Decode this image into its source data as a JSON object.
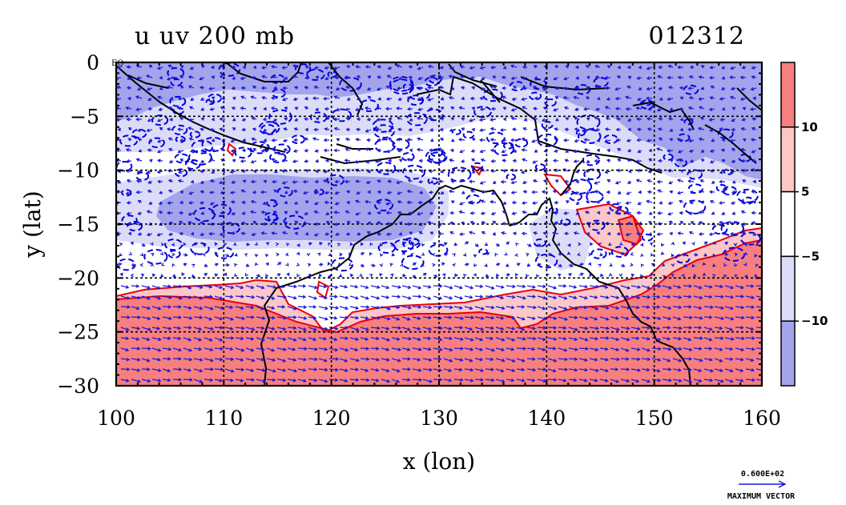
{
  "chart_data": {
    "type": "heatmap",
    "title": "u uv 200 mb",
    "date_label": "012312",
    "xlabel": "x (lon)",
    "ylabel": "y (lat)",
    "xlim": [
      100,
      160
    ],
    "ylim": [
      -30,
      0
    ],
    "x_ticks": [
      "100",
      "110",
      "120",
      "130",
      "140",
      "150",
      "160"
    ],
    "y_ticks": [
      "0",
      "−5",
      "−10",
      "−15",
      "−20",
      "−25",
      "−30"
    ],
    "grid": true,
    "corner_label": "EQ",
    "colorbar": {
      "position": "right",
      "levels": [
        "10",
        "5",
        "−5",
        "−10"
      ],
      "colors": [
        "#f77f7f",
        "#fbc7c7",
        "#ffffff",
        "#dcdcf8",
        "#a4a4ec"
      ]
    },
    "vector_reference": {
      "magnitude": "0.600E+02",
      "label": "MAXIMUM VECTOR"
    },
    "colors": {
      "positive_strong": "#f77f7f",
      "positive_weak": "#fbc7c7",
      "negative_weak": "#dcdcf8",
      "negative_strong": "#a4a4ec",
      "positive_contour": "#e8000b",
      "negative_contour": "#0000e0",
      "vectors": "#1a1ad8",
      "coastline": "#000000"
    }
  }
}
